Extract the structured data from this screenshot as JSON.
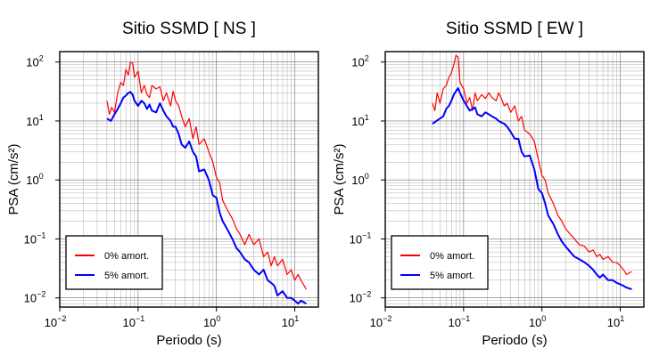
{
  "chart_data": [
    {
      "type": "line",
      "title": "Sitio SSMD [ NS ]",
      "xlabel": "Periodo (s)",
      "ylabel": "PSA (cm/s²)",
      "xscale": "log",
      "yscale": "log",
      "xlim": [
        0.01,
        20
      ],
      "ylim": [
        0.007,
        150
      ],
      "grid": true,
      "legend_position": "bottom-left",
      "xticks": [
        {
          "base": "10",
          "exp": "−2"
        },
        {
          "base": "10",
          "exp": "−1"
        },
        {
          "base": "10",
          "exp": "0"
        },
        {
          "base": "10",
          "exp": "1"
        }
      ],
      "yticks": [
        {
          "base": "10",
          "exp": "−2"
        },
        {
          "base": "10",
          "exp": "−1"
        },
        {
          "base": "10",
          "exp": "0"
        },
        {
          "base": "10",
          "exp": "1"
        },
        {
          "base": "10",
          "exp": "2"
        }
      ],
      "series": [
        {
          "name": "0% amort.",
          "color": "#ff0000",
          "x": [
            0.04,
            0.043,
            0.046,
            0.05,
            0.055,
            0.06,
            0.065,
            0.07,
            0.075,
            0.08,
            0.085,
            0.09,
            0.1,
            0.11,
            0.12,
            0.13,
            0.14,
            0.15,
            0.17,
            0.19,
            0.21,
            0.23,
            0.26,
            0.28,
            0.3,
            0.33,
            0.36,
            0.4,
            0.45,
            0.5,
            0.55,
            0.6,
            0.7,
            0.8,
            0.9,
            1.0,
            1.1,
            1.2,
            1.4,
            1.6,
            1.8,
            2.0,
            2.3,
            2.6,
            3.0,
            3.5,
            4.0,
            4.5,
            5.0,
            5.5,
            6.0,
            7.0,
            8.0,
            9.0,
            10.0,
            11.0,
            12.0,
            14.0
          ],
          "y": [
            22,
            13,
            17,
            14,
            30,
            45,
            40,
            75,
            60,
            100,
            95,
            55,
            70,
            30,
            40,
            28,
            25,
            40,
            35,
            38,
            22,
            30,
            18,
            32,
            22,
            18,
            12,
            8,
            11,
            5,
            8,
            4,
            5,
            3,
            2,
            1.1,
            0.9,
            0.45,
            0.3,
            0.22,
            0.15,
            0.12,
            0.08,
            0.12,
            0.08,
            0.1,
            0.05,
            0.06,
            0.035,
            0.05,
            0.035,
            0.045,
            0.025,
            0.03,
            0.02,
            0.025,
            0.02,
            0.014
          ]
        },
        {
          "name": "5% amort.",
          "color": "#0000ff",
          "x": [
            0.04,
            0.045,
            0.05,
            0.055,
            0.06,
            0.065,
            0.07,
            0.075,
            0.08,
            0.085,
            0.09,
            0.1,
            0.11,
            0.12,
            0.13,
            0.14,
            0.15,
            0.17,
            0.19,
            0.21,
            0.23,
            0.26,
            0.28,
            0.3,
            0.33,
            0.36,
            0.4,
            0.45,
            0.5,
            0.55,
            0.6,
            0.7,
            0.8,
            0.9,
            1.0,
            1.1,
            1.2,
            1.4,
            1.6,
            1.8,
            2.0,
            2.3,
            2.6,
            3.0,
            3.5,
            4.0,
            4.5,
            5.0,
            5.5,
            6.0,
            7.0,
            8.0,
            9.0,
            10.0,
            11.0,
            12.0,
            14.0
          ],
          "y": [
            11,
            10,
            13,
            16,
            20,
            25,
            27,
            30,
            31,
            28,
            22,
            18,
            22,
            20,
            16,
            19,
            15,
            14,
            20,
            15,
            12,
            10,
            8,
            8,
            6,
            4,
            3.5,
            4.5,
            3,
            2.5,
            1.4,
            1.5,
            1,
            0.55,
            0.5,
            0.28,
            0.2,
            0.14,
            0.1,
            0.07,
            0.06,
            0.045,
            0.04,
            0.03,
            0.025,
            0.03,
            0.02,
            0.018,
            0.016,
            0.011,
            0.013,
            0.01,
            0.01,
            0.009,
            0.008,
            0.009,
            0.008
          ]
        }
      ]
    },
    {
      "type": "line",
      "title": "Sitio SSMD [ EW ]",
      "xlabel": "Periodo (s)",
      "ylabel": "PSA (cm/s²)",
      "xscale": "log",
      "yscale": "log",
      "xlim": [
        0.01,
        20
      ],
      "ylim": [
        0.007,
        150
      ],
      "grid": true,
      "legend_position": "bottom-left",
      "xticks": [
        {
          "base": "10",
          "exp": "−2"
        },
        {
          "base": "10",
          "exp": "−1"
        },
        {
          "base": "10",
          "exp": "0"
        },
        {
          "base": "10",
          "exp": "1"
        }
      ],
      "yticks": [
        {
          "base": "10",
          "exp": "−2"
        },
        {
          "base": "10",
          "exp": "−1"
        },
        {
          "base": "10",
          "exp": "0"
        },
        {
          "base": "10",
          "exp": "1"
        },
        {
          "base": "10",
          "exp": "2"
        }
      ],
      "series": [
        {
          "name": "0% amort.",
          "color": "#ff0000",
          "x": [
            0.04,
            0.043,
            0.046,
            0.05,
            0.055,
            0.06,
            0.065,
            0.07,
            0.075,
            0.08,
            0.085,
            0.09,
            0.1,
            0.11,
            0.12,
            0.13,
            0.14,
            0.15,
            0.17,
            0.19,
            0.21,
            0.23,
            0.26,
            0.28,
            0.3,
            0.33,
            0.36,
            0.4,
            0.45,
            0.5,
            0.55,
            0.6,
            0.7,
            0.8,
            0.9,
            1.0,
            1.1,
            1.2,
            1.4,
            1.6,
            1.8,
            2.0,
            2.3,
            2.6,
            3.0,
            3.5,
            4.0,
            4.5,
            5.0,
            5.5,
            6.0,
            7.0,
            8.0,
            9.0,
            10.0,
            11.0,
            12.0,
            14.0
          ],
          "y": [
            20,
            15,
            30,
            20,
            35,
            40,
            55,
            65,
            90,
            130,
            120,
            45,
            35,
            20,
            25,
            15,
            30,
            22,
            28,
            24,
            30,
            25,
            22,
            30,
            25,
            18,
            20,
            14,
            18,
            10,
            12,
            7,
            6,
            4.5,
            2.2,
            1.2,
            1.0,
            0.6,
            0.4,
            0.25,
            0.2,
            0.15,
            0.12,
            0.1,
            0.08,
            0.075,
            0.06,
            0.065,
            0.05,
            0.055,
            0.045,
            0.05,
            0.04,
            0.04,
            0.035,
            0.03,
            0.025,
            0.028
          ]
        },
        {
          "name": "5% amort.",
          "color": "#0000ff",
          "x": [
            0.04,
            0.045,
            0.05,
            0.055,
            0.06,
            0.065,
            0.07,
            0.075,
            0.08,
            0.085,
            0.09,
            0.1,
            0.11,
            0.12,
            0.13,
            0.14,
            0.15,
            0.17,
            0.19,
            0.21,
            0.23,
            0.26,
            0.28,
            0.3,
            0.33,
            0.36,
            0.4,
            0.45,
            0.5,
            0.55,
            0.6,
            0.7,
            0.8,
            0.9,
            1.0,
            1.1,
            1.2,
            1.4,
            1.6,
            1.8,
            2.0,
            2.3,
            2.6,
            3.0,
            3.5,
            4.0,
            4.5,
            5.0,
            5.5,
            6.0,
            7.0,
            8.0,
            9.0,
            10.0,
            11.0,
            12.0,
            14.0
          ],
          "y": [
            9,
            10,
            11,
            12,
            16,
            18,
            22,
            28,
            32,
            36,
            30,
            22,
            18,
            15,
            16,
            17,
            13,
            12,
            14,
            13,
            12,
            11,
            10,
            9.5,
            9,
            8,
            6.5,
            5,
            5,
            3,
            2.5,
            2.6,
            1.5,
            0.7,
            0.6,
            0.4,
            0.25,
            0.18,
            0.12,
            0.09,
            0.075,
            0.06,
            0.05,
            0.045,
            0.04,
            0.035,
            0.03,
            0.025,
            0.022,
            0.025,
            0.02,
            0.02,
            0.018,
            0.017,
            0.016,
            0.015,
            0.014
          ]
        }
      ]
    }
  ]
}
